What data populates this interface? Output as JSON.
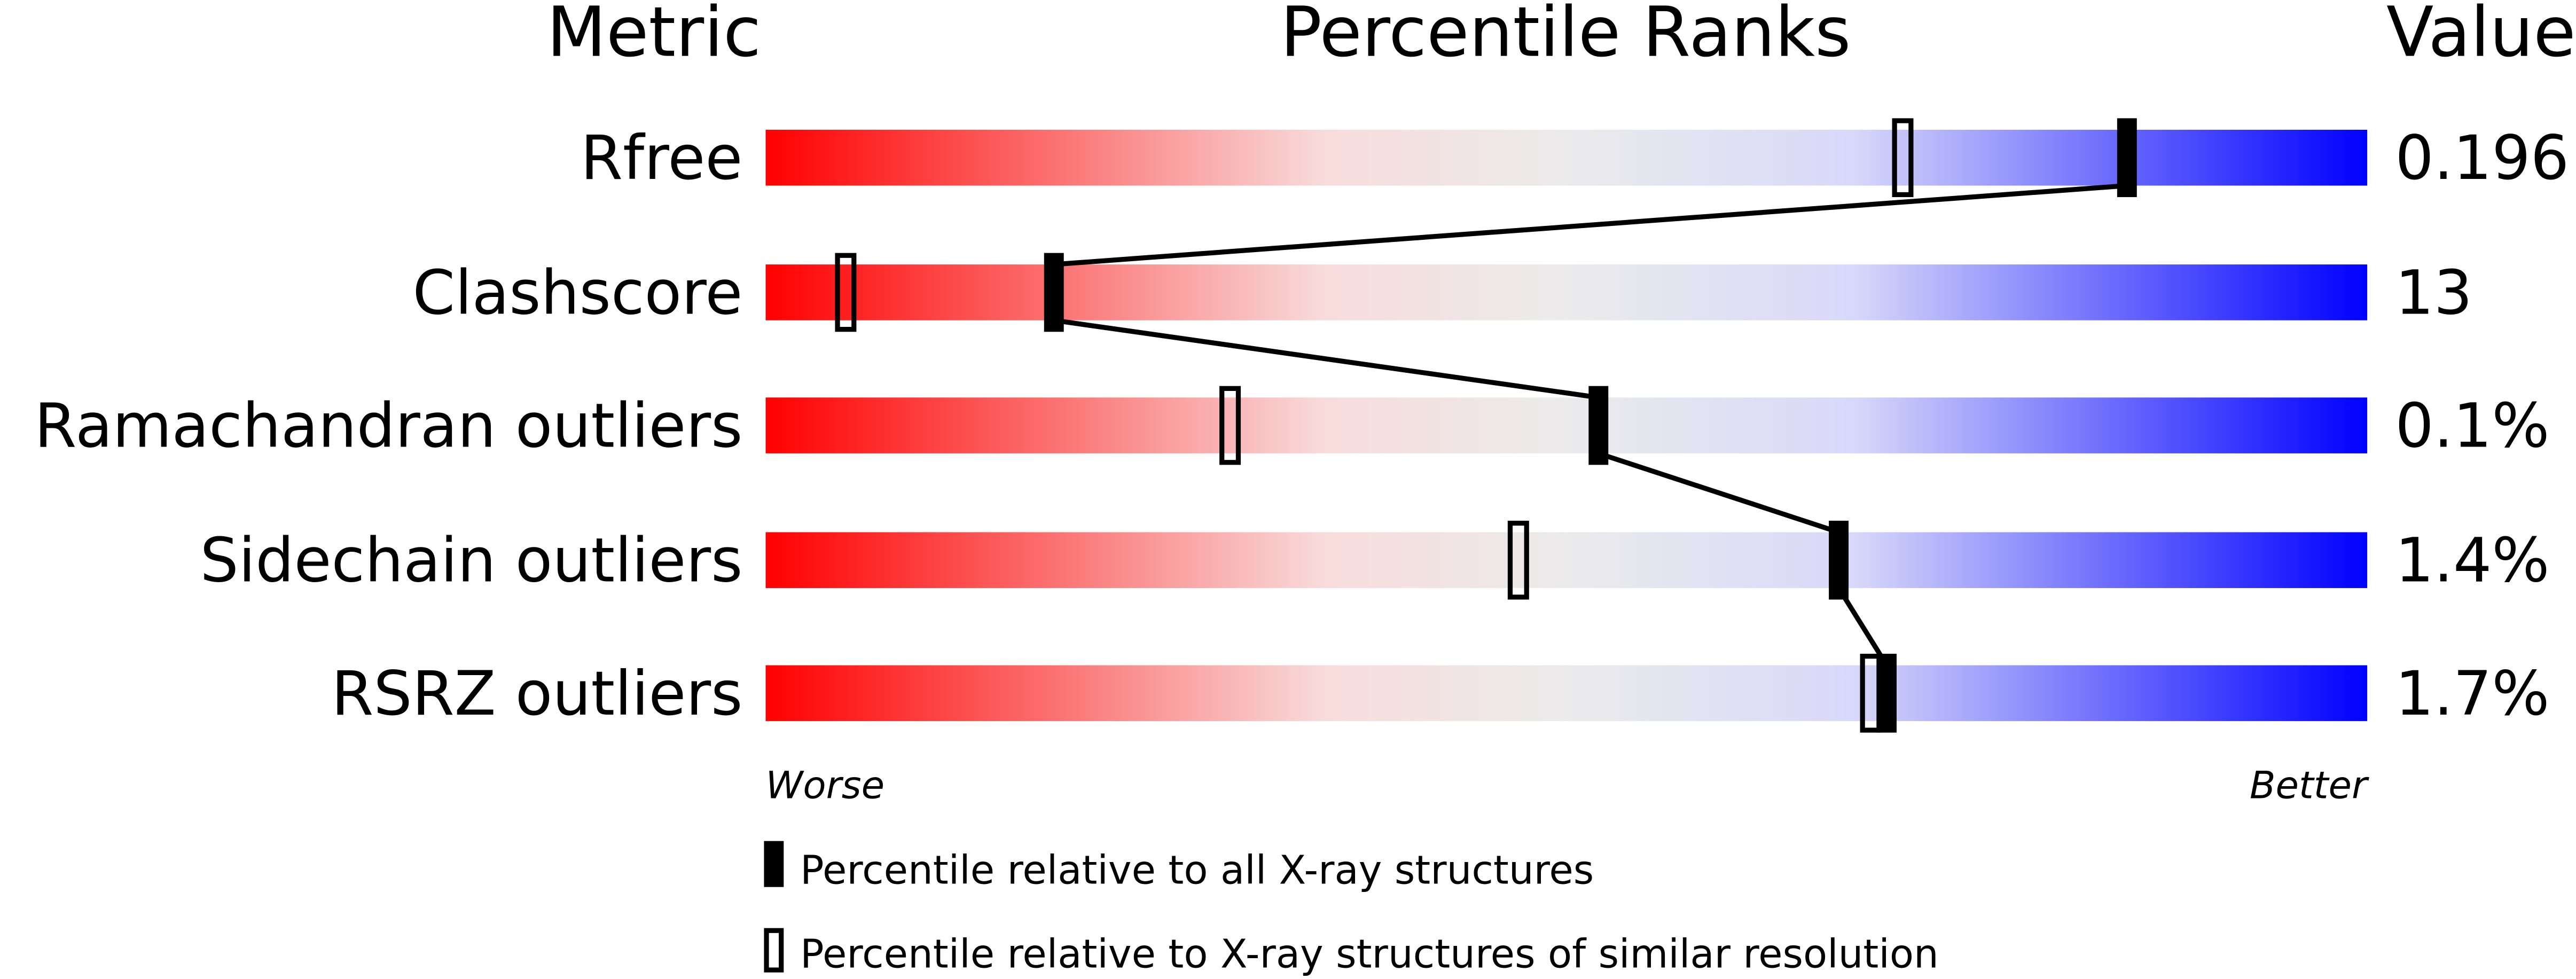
{
  "headers": {
    "metric": "Metric",
    "percentile": "Percentile Ranks",
    "value": "Value"
  },
  "chart_data": {
    "type": "percentile-slider",
    "xlim": [
      0,
      100
    ],
    "axis_labels": {
      "left": "Worse",
      "right": "Better"
    },
    "gradient_colors": [
      "#ff0000",
      "#f8dcdc",
      "#ebebeb",
      "#d8d8fa",
      "#0000ff"
    ],
    "metrics": [
      {
        "name": "Rfree",
        "value": "0.196",
        "percentile_all": 85,
        "percentile_similar": 71
      },
      {
        "name": "Clashscore",
        "value": "13",
        "percentile_all": 18,
        "percentile_similar": 5
      },
      {
        "name": "Ramachandran outliers",
        "value": "0.1%",
        "percentile_all": 52,
        "percentile_similar": 29
      },
      {
        "name": "Sidechain outliers",
        "value": "1.4%",
        "percentile_all": 67,
        "percentile_similar": 47
      },
      {
        "name": "RSRZ outliers",
        "value": "1.7%",
        "percentile_all": 70,
        "percentile_similar": 69
      }
    ],
    "legend": {
      "all": "Percentile relative to all X-ray structures",
      "similar": "Percentile relative to X-ray structures of similar resolution"
    }
  }
}
